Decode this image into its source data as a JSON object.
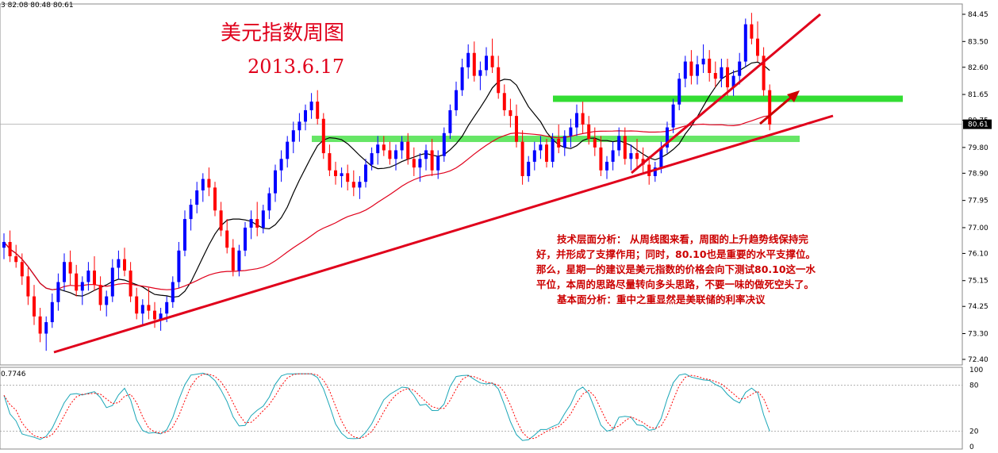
{
  "header": {
    "ohlc_text": "3 82.08 80.48 80.61"
  },
  "title": {
    "line1": "美元指数周图",
    "line2": "2013.6.17"
  },
  "analysis": {
    "technical": "技术层面分析：  从周线图来看，周图的上升趋势线保持完好，并形成了支撑作用；同时，80.10也是重要的水平支撑位。那么，星期一的建议是美元指数的价格会向下测试80.10这一水平位，本周的思路尽量转向多头思路，不要一味的做死空头了。",
    "fundamental": "基本面分析：重中之重显然是美联储的利率决议"
  },
  "price_axis": {
    "ticks": [
      "84.45",
      "83.50",
      "82.60",
      "81.65",
      "80.75",
      "79.80",
      "78.90",
      "77.95",
      "77.00",
      "76.10",
      "75.15",
      "74.25",
      "73.30",
      "72.40"
    ],
    "current": "80.61"
  },
  "oscillator": {
    "label": "0.7746",
    "ticks": [
      "100",
      "80",
      "20",
      "0"
    ]
  },
  "colors": {
    "bull": "#0000ff",
    "bear": "#ff0000",
    "ma_short": "#000000",
    "ma_long": "#e0001b",
    "support_zone": "#33dd33",
    "trendline": "#e0001b",
    "osc_k": "#1aa6b7",
    "osc_d": "#ff0000"
  },
  "chart_data": {
    "type": "candlestick",
    "ylim": [
      72.4,
      84.45
    ],
    "current_price": 80.61,
    "horizontal_levels": [
      81.5,
      80.1
    ],
    "candles": [
      [
        76.3,
        76.8,
        75.9,
        76.5
      ],
      [
        76.5,
        76.9,
        75.8,
        76.0
      ],
      [
        76.0,
        76.4,
        75.6,
        75.8
      ],
      [
        75.8,
        76.1,
        75.0,
        75.3
      ],
      [
        75.3,
        75.6,
        74.3,
        74.6
      ],
      [
        74.6,
        75.0,
        73.6,
        73.9
      ],
      [
        73.9,
        74.2,
        73.0,
        73.3
      ],
      [
        73.3,
        73.9,
        72.7,
        73.7
      ],
      [
        73.7,
        74.7,
        73.5,
        74.4
      ],
      [
        74.4,
        75.4,
        74.1,
        75.1
      ],
      [
        75.1,
        76.1,
        74.8,
        75.8
      ],
      [
        75.8,
        76.2,
        75.0,
        75.4
      ],
      [
        75.4,
        75.7,
        74.6,
        74.8
      ],
      [
        74.8,
        75.3,
        74.3,
        75.1
      ],
      [
        75.1,
        75.8,
        74.8,
        75.5
      ],
      [
        75.5,
        76.0,
        74.8,
        75.0
      ],
      [
        75.0,
        75.3,
        74.1,
        74.3
      ],
      [
        74.3,
        74.8,
        73.9,
        74.6
      ],
      [
        74.6,
        75.9,
        74.4,
        75.6
      ],
      [
        75.6,
        76.2,
        75.2,
        75.9
      ],
      [
        75.9,
        76.3,
        75.3,
        75.5
      ],
      [
        75.5,
        75.8,
        74.4,
        74.6
      ],
      [
        74.6,
        74.9,
        73.8,
        74.0
      ],
      [
        74.0,
        74.5,
        73.6,
        74.3
      ],
      [
        74.3,
        74.9,
        73.8,
        74.1
      ],
      [
        74.1,
        74.4,
        73.5,
        73.8
      ],
      [
        73.8,
        74.2,
        73.4,
        74.0
      ],
      [
        74.0,
        74.6,
        73.7,
        74.4
      ],
      [
        74.4,
        75.3,
        74.2,
        75.1
      ],
      [
        75.1,
        76.5,
        74.9,
        76.2
      ],
      [
        76.2,
        77.6,
        76.0,
        77.3
      ],
      [
        77.3,
        78.0,
        76.9,
        77.8
      ],
      [
        77.8,
        78.6,
        77.5,
        78.3
      ],
      [
        78.3,
        78.9,
        77.9,
        78.7
      ],
      [
        78.7,
        79.1,
        78.1,
        78.4
      ],
      [
        78.4,
        78.6,
        77.4,
        77.6
      ],
      [
        77.6,
        77.9,
        76.7,
        76.9
      ],
      [
        76.9,
        77.3,
        76.1,
        76.3
      ],
      [
        76.3,
        76.6,
        75.3,
        75.5
      ],
      [
        75.5,
        76.4,
        75.3,
        76.2
      ],
      [
        76.2,
        77.2,
        76.0,
        77.0
      ],
      [
        77.0,
        77.6,
        76.6,
        77.3
      ],
      [
        77.3,
        77.9,
        76.7,
        77.0
      ],
      [
        77.0,
        77.8,
        76.8,
        77.6
      ],
      [
        77.6,
        78.4,
        77.3,
        78.2
      ],
      [
        78.2,
        79.2,
        77.9,
        79.0
      ],
      [
        79.0,
        79.7,
        78.6,
        79.4
      ],
      [
        79.4,
        80.2,
        79.1,
        80.0
      ],
      [
        80.0,
        80.7,
        79.6,
        80.4
      ],
      [
        80.4,
        81.0,
        80.0,
        80.7
      ],
      [
        80.7,
        81.3,
        80.4,
        81.1
      ],
      [
        81.1,
        81.7,
        80.8,
        81.4
      ],
      [
        81.4,
        81.8,
        80.6,
        80.8
      ],
      [
        80.8,
        81.0,
        79.4,
        79.6
      ],
      [
        79.6,
        79.9,
        78.8,
        79.0
      ],
      [
        79.0,
        79.3,
        78.5,
        78.8
      ],
      [
        78.8,
        79.1,
        78.4,
        78.9
      ],
      [
        78.9,
        79.2,
        78.3,
        78.6
      ],
      [
        78.6,
        79.0,
        78.1,
        78.4
      ],
      [
        78.4,
        78.8,
        78.0,
        78.6
      ],
      [
        78.6,
        79.4,
        78.4,
        79.2
      ],
      [
        79.2,
        79.8,
        79.0,
        79.6
      ],
      [
        79.6,
        80.2,
        79.2,
        79.9
      ],
      [
        79.9,
        80.2,
        79.5,
        79.7
      ],
      [
        79.7,
        80.0,
        79.2,
        79.4
      ],
      [
        79.4,
        79.9,
        79.0,
        79.7
      ],
      [
        79.7,
        80.2,
        79.4,
        80.0
      ],
      [
        80.0,
        80.3,
        79.2,
        79.4
      ],
      [
        79.4,
        79.8,
        78.8,
        79.1
      ],
      [
        79.1,
        79.6,
        78.6,
        79.4
      ],
      [
        79.4,
        79.9,
        79.0,
        79.7
      ],
      [
        79.7,
        80.1,
        78.8,
        79.0
      ],
      [
        79.0,
        79.7,
        78.7,
        79.5
      ],
      [
        79.5,
        80.5,
        79.3,
        80.3
      ],
      [
        80.3,
        81.3,
        80.1,
        81.1
      ],
      [
        81.1,
        82.1,
        80.9,
        81.8
      ],
      [
        81.8,
        82.9,
        81.6,
        82.6
      ],
      [
        82.6,
        83.4,
        82.2,
        83.1
      ],
      [
        83.1,
        83.5,
        82.1,
        82.3
      ],
      [
        82.3,
        82.8,
        81.8,
        82.5
      ],
      [
        82.5,
        83.3,
        82.3,
        83.0
      ],
      [
        83.0,
        83.6,
        82.4,
        82.6
      ],
      [
        82.6,
        83.0,
        81.5,
        81.7
      ],
      [
        81.7,
        82.0,
        80.9,
        81.1
      ],
      [
        81.1,
        81.5,
        80.5,
        80.9
      ],
      [
        80.9,
        81.3,
        79.8,
        80.0
      ],
      [
        80.0,
        80.4,
        78.5,
        78.8
      ],
      [
        78.8,
        79.5,
        78.6,
        79.3
      ],
      [
        79.3,
        80.0,
        79.0,
        79.7
      ],
      [
        79.7,
        80.2,
        79.4,
        79.9
      ],
      [
        79.9,
        80.1,
        79.1,
        79.3
      ],
      [
        79.3,
        80.3,
        79.1,
        80.1
      ],
      [
        80.1,
        80.6,
        79.6,
        79.8
      ],
      [
        79.8,
        80.4,
        79.5,
        80.2
      ],
      [
        80.2,
        80.8,
        79.8,
        80.5
      ],
      [
        80.5,
        81.3,
        80.2,
        81.0
      ],
      [
        81.0,
        81.4,
        80.3,
        80.6
      ],
      [
        80.6,
        80.9,
        79.9,
        80.1
      ],
      [
        80.1,
        80.5,
        79.5,
        79.8
      ],
      [
        79.8,
        80.2,
        78.8,
        79.0
      ],
      [
        79.0,
        79.5,
        78.7,
        79.3
      ],
      [
        79.3,
        80.0,
        79.0,
        79.7
      ],
      [
        79.7,
        80.5,
        79.5,
        80.2
      ],
      [
        80.2,
        80.5,
        79.2,
        79.4
      ],
      [
        79.4,
        79.9,
        79.0,
        79.6
      ],
      [
        79.6,
        80.1,
        79.1,
        79.4
      ],
      [
        79.4,
        79.8,
        78.9,
        79.2
      ],
      [
        79.2,
        79.5,
        78.5,
        78.8
      ],
      [
        78.8,
        79.3,
        78.6,
        79.1
      ],
      [
        79.1,
        80.0,
        78.9,
        79.8
      ],
      [
        79.8,
        80.7,
        79.6,
        80.5
      ],
      [
        80.5,
        81.5,
        80.3,
        81.3
      ],
      [
        81.3,
        82.4,
        81.1,
        82.2
      ],
      [
        82.2,
        83.0,
        81.9,
        82.8
      ],
      [
        82.8,
        83.2,
        82.0,
        82.3
      ],
      [
        82.3,
        83.0,
        82.0,
        82.7
      ],
      [
        82.7,
        83.4,
        82.4,
        82.9
      ],
      [
        82.9,
        83.2,
        82.1,
        82.4
      ],
      [
        82.4,
        82.8,
        81.9,
        82.2
      ],
      [
        82.2,
        82.9,
        81.9,
        82.6
      ],
      [
        82.6,
        82.9,
        81.6,
        81.9
      ],
      [
        81.9,
        82.5,
        81.6,
        82.3
      ],
      [
        82.3,
        83.1,
        82.0,
        82.8
      ],
      [
        82.8,
        84.3,
        82.6,
        84.1
      ],
      [
        84.1,
        84.5,
        83.4,
        83.6
      ],
      [
        83.6,
        84.2,
        82.8,
        83.0
      ],
      [
        83.0,
        83.3,
        81.6,
        81.8
      ],
      [
        81.8,
        82.0,
        80.4,
        80.6
      ]
    ]
  }
}
